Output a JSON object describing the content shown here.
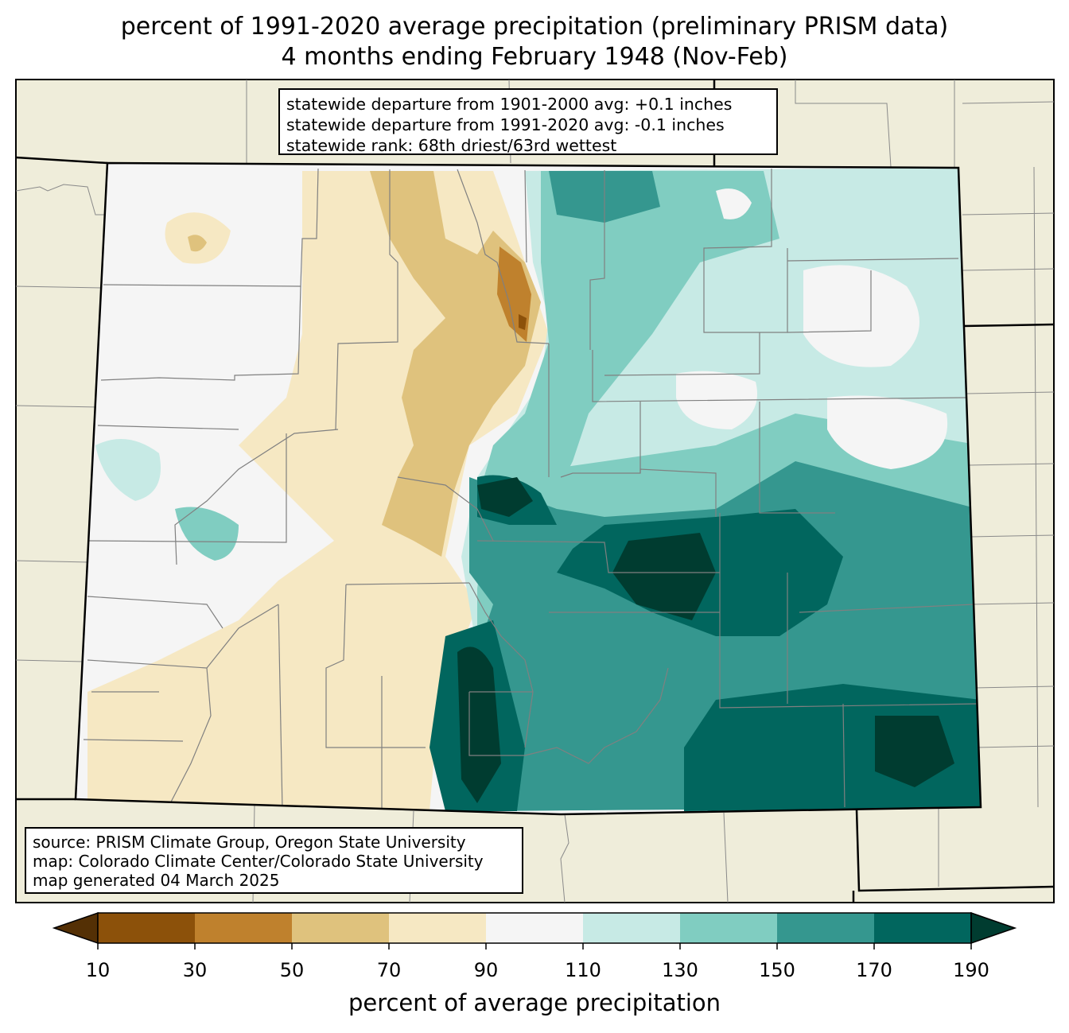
{
  "title": {
    "line1": "percent of 1991-2020 average precipitation (preliminary PRISM data)",
    "line2": "4 months ending February 1948 (Nov-Feb)"
  },
  "stats": {
    "line1": "statewide departure from 1901-2000 avg: +0.1 inches",
    "line2": "statewide departure from 1991-2020 avg: -0.1 inches",
    "line3": "statewide rank: 68th driest/63rd wettest"
  },
  "source": {
    "line1": "source: PRISM Climate Group, Oregon State University",
    "line2": "map: Colorado Climate Center/Colorado State University",
    "line3": "map generated 04 March 2025"
  },
  "colorbar": {
    "label": "percent of average precipitation",
    "ticks": [
      "10",
      "30",
      "50",
      "70",
      "90",
      "110",
      "130",
      "150",
      "170",
      "190"
    ],
    "colors": [
      "#543005",
      "#8c510a",
      "#bf812d",
      "#dfc27d",
      "#f6e8c3",
      "#f5f5f5",
      "#c7eae5",
      "#80cdc1",
      "#35978f",
      "#01665e",
      "#003c30"
    ]
  },
  "map_colors": {
    "background_land": "#efedda",
    "border": "#000000",
    "county_line": "#808080"
  }
}
